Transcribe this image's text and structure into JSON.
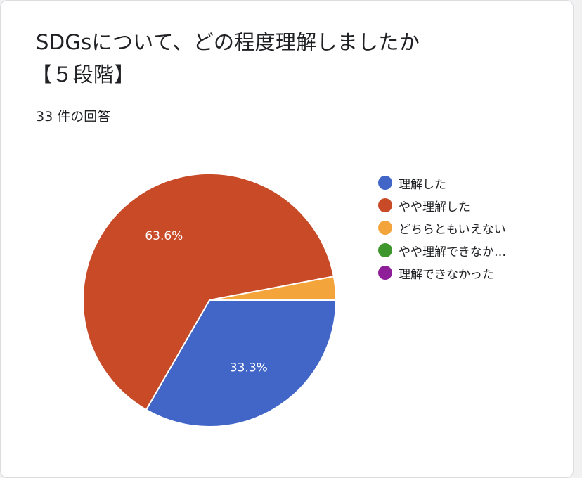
{
  "card": {
    "title_line1": "SDGsについて、どの程度理解しましたか",
    "title_line2": "【５段階】",
    "response_count": "33 件の回答"
  },
  "chart_data": {
    "type": "pie",
    "categories": [
      "理解した",
      "やや理解した",
      "どちらともいえない",
      "やや理解できなか…",
      "理解できなかった"
    ],
    "values": [
      33.3,
      63.6,
      3.0,
      0,
      0
    ],
    "data_labels": [
      "33.3%",
      "63.6%",
      "",
      "",
      ""
    ],
    "colors": [
      "#4166c7",
      "#c84a27",
      "#f3a43b",
      "#3f962c",
      "#8f1f98"
    ],
    "legend_position": "right",
    "title": "SDGsについて、どの程度理解しましたか【５段階】"
  }
}
